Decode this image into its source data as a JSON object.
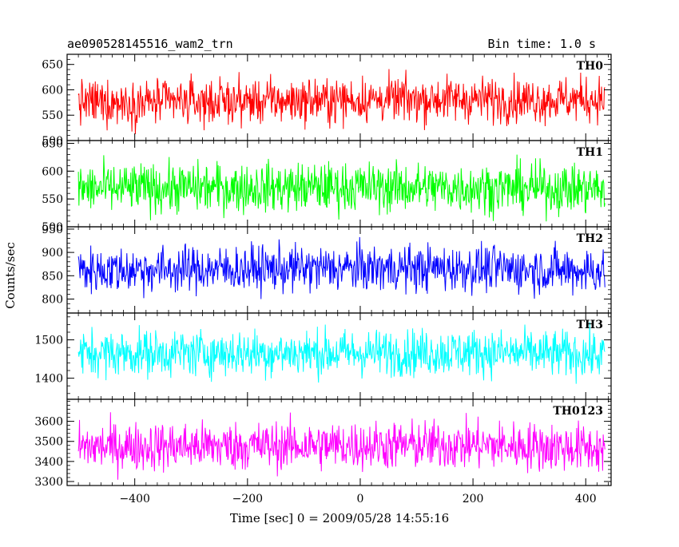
{
  "header": {
    "title": "ae090528145516_wam2_trn",
    "bin_time": "Bin time: 1.0 s"
  },
  "chart_data": {
    "type": "line",
    "xlabel": "Time [sec] 0 = 2009/05/28 14:55:16",
    "ylabel": "Counts/sec",
    "xlim": [
      -520,
      445
    ],
    "x_ticks": [
      -400,
      -200,
      0,
      200,
      400
    ],
    "x_tick_labels": [
      "−400",
      "−200",
      "0",
      "200",
      "400"
    ],
    "x_range_data": [
      -500,
      434
    ],
    "bin_time_s": 1.0,
    "series": [
      {
        "name": "TH0",
        "color": "#ff0000",
        "ylim": [
          500,
          670
        ],
        "yticks": [
          500,
          550,
          600,
          650
        ],
        "mean": 578,
        "spread": 40,
        "trend": [
          [
            -500,
            575
          ],
          [
            -300,
            576
          ],
          [
            0,
            580
          ],
          [
            150,
            582
          ],
          [
            300,
            580
          ],
          [
            434,
            582
          ]
        ]
      },
      {
        "name": "TH1",
        "color": "#00ff00",
        "ylim": [
          500,
          655
        ],
        "yticks": [
          500,
          550,
          600,
          650
        ],
        "mean": 570,
        "spread": 40,
        "trend": [
          [
            -500,
            568
          ],
          [
            -300,
            570
          ],
          [
            0,
            571
          ],
          [
            200,
            570
          ],
          [
            434,
            568
          ]
        ]
      },
      {
        "name": "TH2",
        "color": "#0000ff",
        "ylim": [
          770,
          955
        ],
        "yticks": [
          800,
          850,
          900,
          950
        ],
        "mean": 863,
        "spread": 45,
        "trend": [
          [
            -500,
            862
          ],
          [
            -300,
            864
          ],
          [
            0,
            866
          ],
          [
            200,
            866
          ],
          [
            434,
            860
          ]
        ]
      },
      {
        "name": "TH3",
        "color": "#00ffff",
        "ylim": [
          1345,
          1570
        ],
        "yticks": [
          1400,
          1500
        ],
        "mean": 1465,
        "spread": 55,
        "trend": [
          [
            -500,
            1465
          ],
          [
            -300,
            1466
          ],
          [
            0,
            1466
          ],
          [
            200,
            1468
          ],
          [
            434,
            1460
          ]
        ]
      },
      {
        "name": "TH0123",
        "color": "#ff00ff",
        "ylim": [
          3280,
          3710
        ],
        "yticks": [
          3300,
          3400,
          3500,
          3600
        ],
        "mean": 3475,
        "spread": 110,
        "trend": [
          [
            -500,
            3472
          ],
          [
            -300,
            3476
          ],
          [
            0,
            3480
          ],
          [
            200,
            3482
          ],
          [
            434,
            3465
          ]
        ]
      }
    ]
  }
}
